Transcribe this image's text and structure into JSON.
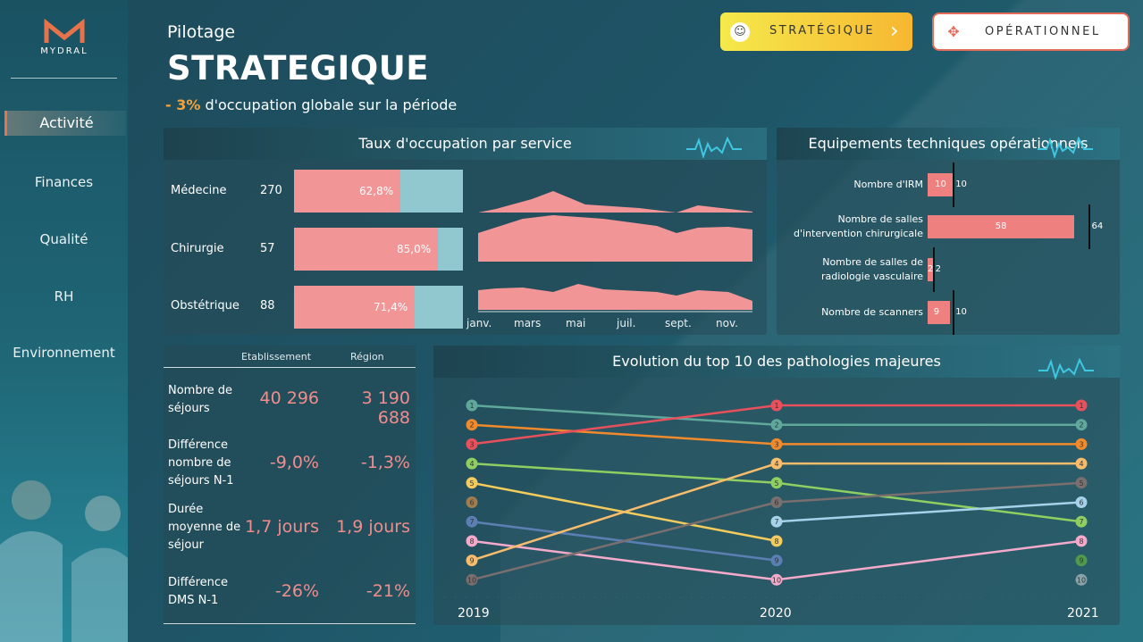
{
  "brand": {
    "name": "MYDRAL",
    "accent": "#e8734a"
  },
  "nav": {
    "items": [
      {
        "label": "Activité",
        "active": true
      },
      {
        "label": "Finances",
        "active": false
      },
      {
        "label": "Qualité",
        "active": false
      },
      {
        "label": "RH",
        "active": false
      },
      {
        "label": "Environnement",
        "active": false
      }
    ]
  },
  "header": {
    "subtitle": "Pilotage",
    "title": "STRATEGIQUE",
    "note_value": "- 3%",
    "note_text": " d'occupation globale sur la période"
  },
  "buttons": {
    "strategic": {
      "label": "STRATÉGIQUE",
      "icon": "brain-icon",
      "color": "#f5e94b"
    },
    "operational": {
      "label": "OPÉRATIONNEL",
      "icon": "network-icon",
      "color": "#e46b59"
    }
  },
  "occupancy": {
    "title": "Taux d'occupation par service",
    "rows": [
      {
        "service": "Médecine",
        "count": "270",
        "rate_label": "62,8%",
        "rate": 0.628
      },
      {
        "service": "Chirurgie",
        "count": "57",
        "rate_label": "85,0%",
        "rate": 0.85
      },
      {
        "service": "Obstétrique",
        "count": "88",
        "rate_label": "71,4%",
        "rate": 0.714
      }
    ],
    "months": [
      "janv.",
      "mars",
      "mai",
      "juil.",
      "sept.",
      "nov."
    ],
    "trend_colors": {
      "fill": "#f29596",
      "rest": "#91c7cf"
    }
  },
  "equipment": {
    "title": "Equipements techniques opérationnels",
    "rows": [
      {
        "label_1": "Nombre d'IRM",
        "label_2": "",
        "value": 10,
        "target": 10,
        "value_label": "10",
        "target_label": "10"
      },
      {
        "label_1": "Nombre de salles",
        "label_2": "d'intervention chirurgicale",
        "value": 58,
        "target": 64,
        "value_label": "58",
        "target_label": "64"
      },
      {
        "label_1": "Nombre de salles de",
        "label_2": "radiologie vasculaire",
        "value": 2,
        "target": 2,
        "value_label": "2",
        "target_label": "2"
      },
      {
        "label_1": "Nombre de scanners",
        "label_2": "",
        "value": 9,
        "target": 10,
        "value_label": "9",
        "target_label": "10"
      }
    ]
  },
  "kpi": {
    "col_establishment": "Etablissement",
    "col_region": "Région",
    "rows": [
      {
        "label": "Nombre de séjours",
        "etab": "40 296",
        "region": "3 190 688"
      },
      {
        "label": "Différence nombre de séjours N-1",
        "etab": "-9,0%",
        "region": "-1,3%"
      },
      {
        "label": "Durée moyenne de séjour",
        "etab": "1,7 jours",
        "region": "1,9 jours"
      },
      {
        "label": "Différence DMS N-1",
        "etab": "-26%",
        "region": "-21%"
      }
    ]
  },
  "chart_data": {
    "type": "line",
    "title": "Evolution du top 10 des pathologies majeures",
    "x": [
      "2019",
      "2020",
      "2021"
    ],
    "ylabel": "",
    "y_inverted": true,
    "ylim": [
      1,
      10
    ],
    "series": [
      {
        "color": "#5fa89c",
        "values": [
          1,
          2,
          2
        ]
      },
      {
        "color": "#f08a2c",
        "values": [
          2,
          3,
          3
        ]
      },
      {
        "color": "#e8505b",
        "values": [
          3,
          1,
          1
        ]
      },
      {
        "color": "#8fcf62",
        "values": [
          4,
          5,
          7
        ]
      },
      {
        "color": "#f4cc5d",
        "values": [
          5,
          8,
          null
        ]
      },
      {
        "color": "#a07d4f",
        "values": [
          6,
          null,
          null
        ]
      },
      {
        "color": "#5b7fb3",
        "values": [
          7,
          9,
          null
        ]
      },
      {
        "color": "#f4aacb",
        "values": [
          8,
          10,
          8
        ]
      },
      {
        "color": "#f7bc6c",
        "values": [
          9,
          4,
          4
        ]
      },
      {
        "color": "#7a6f6f",
        "values": [
          10,
          6,
          5
        ]
      },
      {
        "color": "#a6d1ea",
        "values": [
          null,
          7,
          6
        ]
      },
      {
        "color": "#4f9a4c",
        "values": [
          null,
          null,
          9
        ]
      },
      {
        "color": "#8aa3a8",
        "values": [
          null,
          null,
          10
        ]
      }
    ]
  }
}
